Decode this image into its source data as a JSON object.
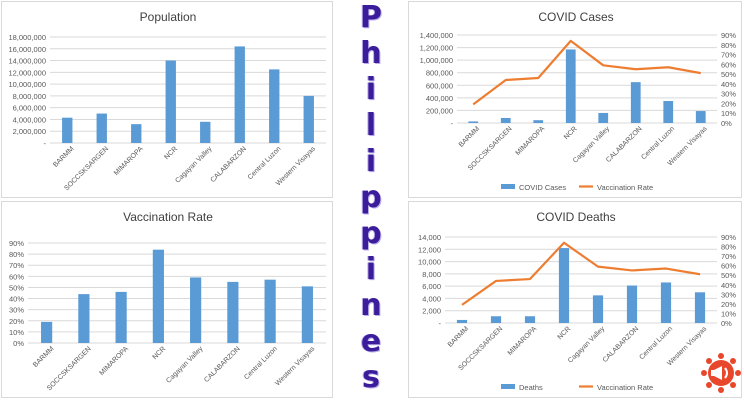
{
  "page": {
    "vertical_word": [
      "P",
      "h",
      "i",
      "l",
      "i",
      "p",
      "p",
      "i",
      "n",
      "e",
      "s"
    ]
  },
  "colors": {
    "bar": "#5b9bd5",
    "line": "#ed7d31",
    "title": "#404040",
    "axis_text": "#595959",
    "grid": "#d9d9d9",
    "word": "#3b1d9c",
    "logo": "#e8472c"
  },
  "chart_data": [
    {
      "id": "population",
      "type": "bar",
      "title": "Population",
      "categories": [
        "BARMM",
        "SOCCSKSARGEN",
        "MIMAROPA",
        "NCR",
        "Cagayan Valley",
        "CALABARZON",
        "Central Luzon",
        "Western Visayas"
      ],
      "values": [
        4300000,
        5000000,
        3200000,
        14000000,
        3600000,
        16400000,
        12500000,
        8000000
      ],
      "ylim": [
        0,
        18000000
      ],
      "yticks": [
        "-",
        "2,000,000",
        "4,000,000",
        "6,000,000",
        "8,000,000",
        "10,000,000",
        "12,000,000",
        "14,000,000",
        "16,000,000",
        "18,000,000"
      ],
      "grid": true
    },
    {
      "id": "vaccination",
      "type": "bar",
      "title": "Vaccination Rate",
      "categories": [
        "BARMM",
        "SOCCSKSARGEN",
        "MIMAROPA",
        "NCR",
        "Cagayan Valley",
        "CALABARZON",
        "Central Luzon",
        "Western Visayas"
      ],
      "values": [
        19,
        44,
        46,
        84,
        59,
        55,
        57,
        51
      ],
      "ylim": [
        0,
        90
      ],
      "yticks": [
        "0%",
        "10%",
        "20%",
        "30%",
        "40%",
        "50%",
        "60%",
        "70%",
        "80%",
        "90%"
      ],
      "grid": true
    },
    {
      "id": "cases",
      "type": "bar",
      "title": "COVID Cases",
      "categories": [
        "BARMM",
        "SOCCSKSARGEN",
        "MIMAROPA",
        "NCR",
        "Cagayan Valley",
        "CALABARZON",
        "Central Luzon",
        "Western Visayas"
      ],
      "series": [
        {
          "name": "COVID Cases",
          "type": "bar",
          "axis": "left",
          "values": [
            25000,
            80000,
            45000,
            1170000,
            160000,
            650000,
            350000,
            190000
          ]
        },
        {
          "name": "Vaccination Rate",
          "type": "line",
          "axis": "right",
          "values": [
            19,
            44,
            46,
            84,
            59,
            55,
            57,
            51
          ]
        }
      ],
      "ylim": [
        0,
        1400000
      ],
      "yticks": [
        "-",
        "200,000",
        "400,000",
        "600,000",
        "800,000",
        "1,000,000",
        "1,200,000",
        "1,400,000"
      ],
      "y2lim": [
        0,
        90
      ],
      "y2ticks": [
        "0%",
        "10%",
        "20%",
        "30%",
        "40%",
        "50%",
        "60%",
        "70%",
        "80%",
        "90%"
      ],
      "legend": "bottom",
      "grid": true
    },
    {
      "id": "deaths",
      "type": "bar",
      "title": "COVID Deaths",
      "categories": [
        "BARMM",
        "SOCCSKSARGEN",
        "MIMAROPA",
        "NCR",
        "Cagayan Valley",
        "CALABARZON",
        "Central Luzon",
        "Western Visayas"
      ],
      "series": [
        {
          "name": "Deaths",
          "type": "bar",
          "axis": "left",
          "values": [
            500,
            1100,
            1100,
            12200,
            4500,
            6100,
            6600,
            5000
          ]
        },
        {
          "name": "Vaccination Rate",
          "type": "line",
          "axis": "right",
          "values": [
            19,
            44,
            46,
            84,
            59,
            55,
            57,
            51
          ]
        }
      ],
      "ylim": [
        0,
        14000
      ],
      "yticks": [
        "-",
        "2,000",
        "4,000",
        "6,000",
        "8,000",
        "10,000",
        "12,000",
        "14,000"
      ],
      "y2lim": [
        0,
        90
      ],
      "y2ticks": [
        "0%",
        "10%",
        "20%",
        "30%",
        "40%",
        "50%",
        "60%",
        "70%",
        "80%",
        "90%"
      ],
      "legend": "bottom",
      "grid": true
    }
  ]
}
